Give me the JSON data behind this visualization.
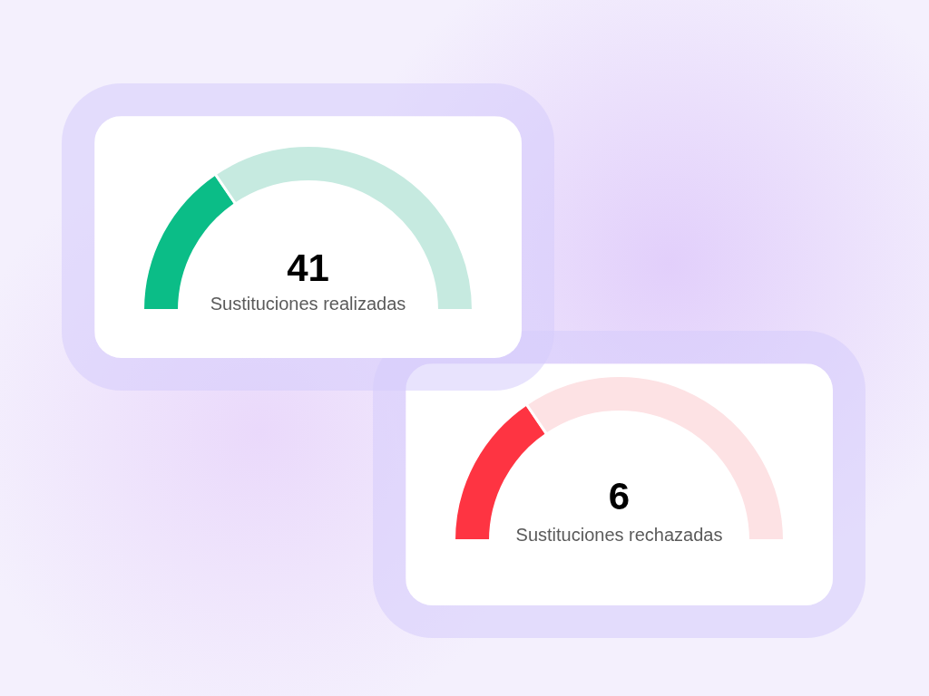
{
  "chart_data": [
    {
      "type": "donut",
      "title": "41",
      "subtitle": "Sustituciones realizadas",
      "categories": [
        null,
        null
      ],
      "values": [
        31,
        69
      ],
      "colors": [
        "#0bbd87",
        "#c6eae0"
      ]
    },
    {
      "type": "donut",
      "title": "6",
      "subtitle": "Sustituciones rechazadas",
      "categories": [
        null,
        null
      ],
      "values": [
        31,
        69
      ],
      "colors": [
        "#fe3442",
        "#fde2e4"
      ]
    }
  ]
}
